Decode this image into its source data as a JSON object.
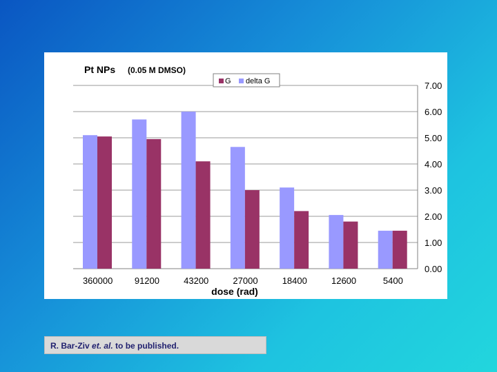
{
  "chart_data": {
    "type": "bar",
    "title_main": "Pt  NPs",
    "title_sub": "(0.05 M DMSO)",
    "xlabel": "dose (rad)",
    "ylabel": "",
    "categories": [
      "360000",
      "91200",
      "43200",
      "27000",
      "18400",
      "12600",
      "5400"
    ],
    "series": [
      {
        "name": "G",
        "color": "#993366",
        "values": [
          5.05,
          4.95,
          4.1,
          3.0,
          2.2,
          1.8,
          1.45
        ]
      },
      {
        "name": "delta G",
        "color": "#9999ff",
        "values": [
          5.1,
          5.7,
          6.0,
          4.65,
          3.1,
          2.05,
          1.45
        ]
      }
    ],
    "ylim": [
      0,
      7
    ],
    "yticks": [
      "0.00",
      "1.00",
      "2.00",
      "3.00",
      "4.00",
      "5.00",
      "6.00",
      "7.00"
    ],
    "grid": true,
    "legend_position": "top-center"
  },
  "caption": {
    "author": "R. Bar-Ziv",
    "etal": "et. al.",
    "rest": " to be published."
  }
}
